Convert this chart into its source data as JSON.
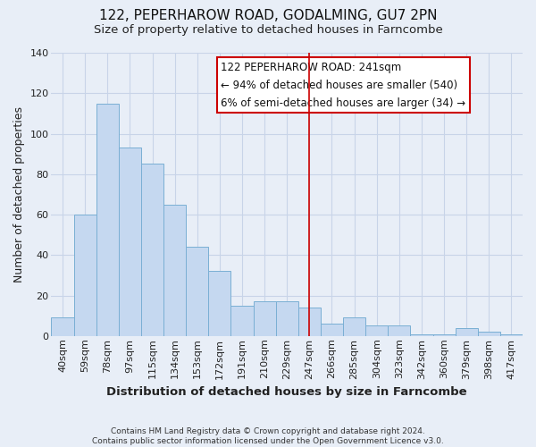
{
  "title": "122, PEPERHAROW ROAD, GODALMING, GU7 2PN",
  "subtitle": "Size of property relative to detached houses in Farncombe",
  "xlabel": "Distribution of detached houses by size in Farncombe",
  "ylabel": "Number of detached properties",
  "footer_line1": "Contains HM Land Registry data © Crown copyright and database right 2024.",
  "footer_line2": "Contains public sector information licensed under the Open Government Licence v3.0.",
  "bar_labels": [
    "40sqm",
    "59sqm",
    "78sqm",
    "97sqm",
    "115sqm",
    "134sqm",
    "153sqm",
    "172sqm",
    "191sqm",
    "210sqm",
    "229sqm",
    "247sqm",
    "266sqm",
    "285sqm",
    "304sqm",
    "323sqm",
    "342sqm",
    "360sqm",
    "379sqm",
    "398sqm",
    "417sqm"
  ],
  "bar_values": [
    9,
    60,
    115,
    93,
    85,
    65,
    44,
    32,
    15,
    17,
    17,
    14,
    6,
    9,
    5,
    5,
    1,
    1,
    4,
    2,
    1
  ],
  "bar_color": "#c5d8f0",
  "bar_edge_color": "#7aafd4",
  "vline_x": 11,
  "vline_color": "#cc0000",
  "ylim": [
    0,
    140
  ],
  "yticks": [
    0,
    20,
    40,
    60,
    80,
    100,
    120,
    140
  ],
  "annotation_title": "122 PEPERHAROW ROAD: 241sqm",
  "annotation_line1": "← 94% of detached houses are smaller (540)",
  "annotation_line2": "6% of semi-detached houses are larger (34) →",
  "bg_color": "#e8eef7",
  "grid_color": "#c8d4e8",
  "title_fontsize": 11,
  "subtitle_fontsize": 9.5,
  "label_fontsize": 9,
  "tick_fontsize": 8,
  "annotation_fontsize": 8.5
}
